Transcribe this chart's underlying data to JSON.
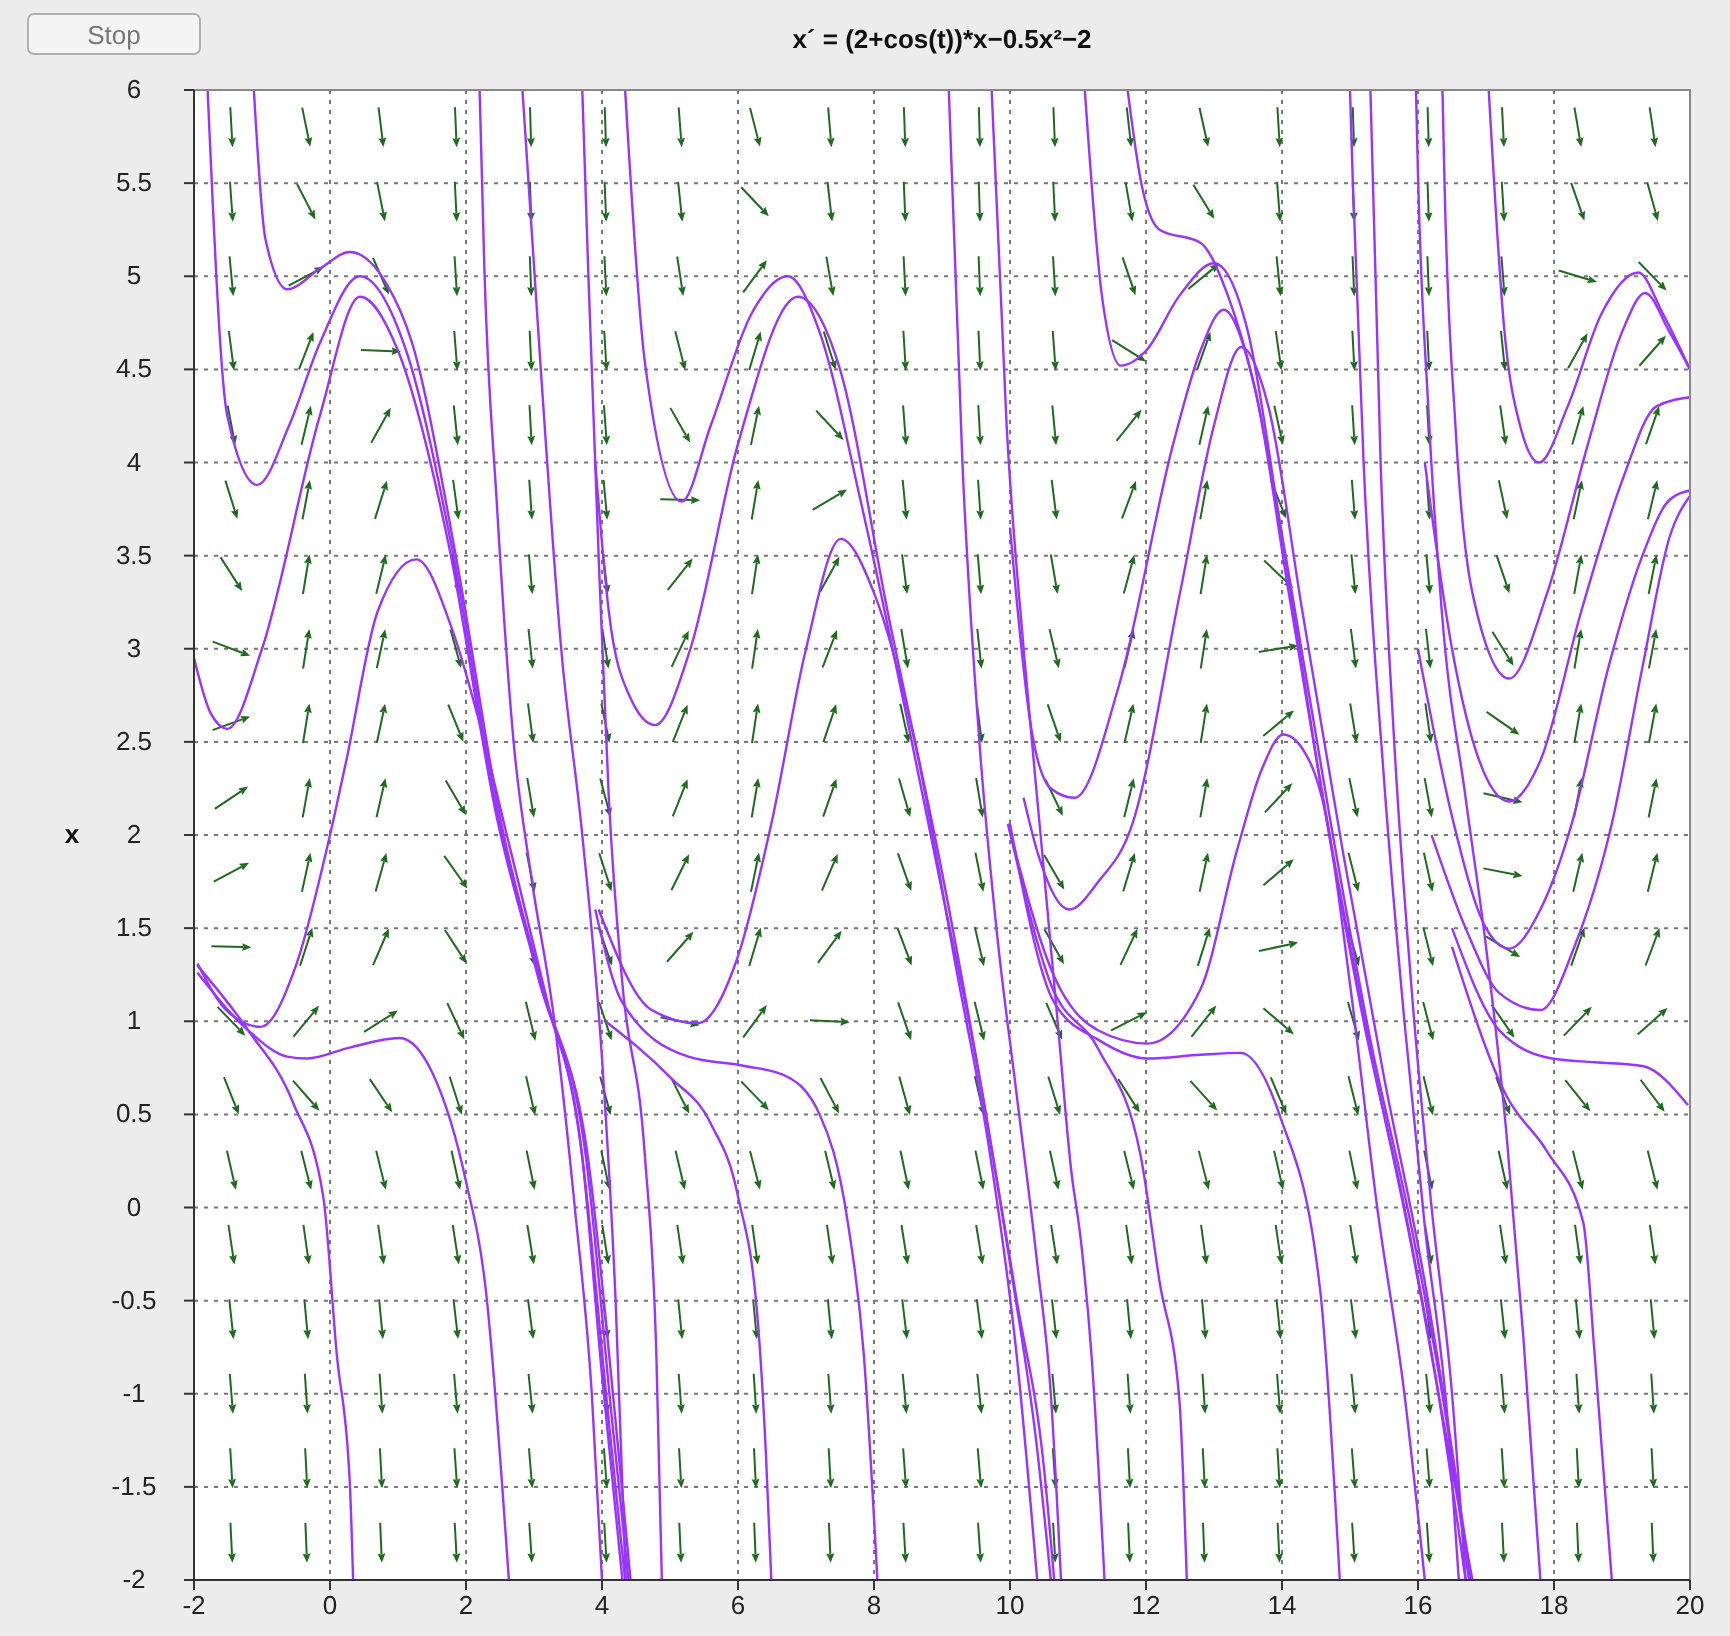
{
  "chart_data": {
    "type": "line",
    "title": "x´ = (2+cos(t))*x−0.5x²−2",
    "ylabel": "x",
    "annotations": [
      "Stop"
    ],
    "xlim": [
      -2,
      20
    ],
    "xticks": [
      -2,
      0,
      2,
      4,
      6,
      8,
      10,
      12,
      14,
      16,
      18,
      20
    ],
    "ylim": [
      -2,
      6
    ],
    "yticks": [
      -2,
      -1.5,
      -1,
      -0.5,
      0,
      0.5,
      1,
      1.5,
      2,
      2.5,
      3,
      3.5,
      4,
      4.5,
      5,
      5.5,
      6
    ],
    "grid": true,
    "series": [
      {
        "color": "#9933ff",
        "x": [
          -1.8,
          -1.51,
          -1.07,
          -0.6,
          -0.15,
          0.44,
          1.12,
          1.8,
          2.49,
          3.1,
          3.76,
          4.15,
          4.39
        ],
        "values": [
          6,
          4.25,
          3.88,
          4.2,
          4.64,
          5.0,
          4.6,
          3.53,
          2.06,
          1.2,
          0.28,
          -1.15,
          -2
        ]
      },
      {
        "color": "#9933ff",
        "x": [
          -1.12,
          -0.95,
          -0.63,
          -0.15,
          0.29,
          0.83,
          1.2,
          1.85,
          2.52,
          3.15,
          3.8,
          4.2,
          4.42
        ],
        "values": [
          6,
          5.2,
          4.93,
          5.04,
          5.13,
          4.96,
          4.65,
          3.5,
          2.06,
          1.15,
          0.25,
          -1.15,
          -2
        ]
      },
      {
        "color": "#9933ff",
        "x": [
          -2,
          -1.75,
          -1.51,
          -1.0,
          -0.15,
          0.44,
          1.0,
          1.75,
          2.45,
          3.05,
          3.7,
          4.1,
          4.34
        ],
        "values": [
          2.95,
          2.65,
          2.57,
          3.0,
          4.25,
          4.89,
          4.6,
          3.55,
          2.1,
          1.25,
          0.3,
          -1.15,
          -2
        ]
      },
      {
        "color": "#9933ff",
        "x": [
          -1.95,
          -1.5,
          -1.02,
          -0.5,
          0,
          0.24,
          0.7,
          1.27,
          1.8,
          2.2,
          2.6,
          3.2,
          3.7,
          4.0,
          4.3
        ],
        "values": [
          1.31,
          1.05,
          0.97,
          1.3,
          2.0,
          2.4,
          3.2,
          3.48,
          3.1,
          2.6,
          2.0,
          1.1,
          0.3,
          -0.9,
          -2
        ]
      },
      {
        "color": "#9933ff",
        "x": [
          -1.95,
          -1.2,
          -0.63,
          -0.34,
          0.3,
          1.02,
          1.51,
          2.0,
          2.29,
          2.63
        ],
        "values": [
          1.26,
          0.95,
          0.81,
          0.8,
          0.86,
          0.91,
          0.72,
          0.14,
          -0.44,
          -2
        ]
      },
      {
        "color": "#9933ff",
        "x": [
          -1.95,
          -1.2,
          -0.54,
          -0.1,
          0.1,
          0.29,
          0.34
        ],
        "values": [
          1.3,
          0.95,
          0.56,
          0.06,
          -0.79,
          -1.47,
          -2
        ]
      },
      {
        "color": "#9933ff",
        "x": [
          2.83,
          3.1,
          3.4,
          3.71,
          4.0,
          4.2,
          4.35
        ],
        "values": [
          6,
          4.5,
          3.0,
          2.0,
          0.8,
          -0.5,
          -2
        ]
      },
      {
        "color": "#9933ff",
        "x": [
          2.2,
          2.27,
          2.45,
          2.7,
          2.95,
          3.3,
          3.6,
          3.85,
          4.0
        ],
        "values": [
          6,
          5.04,
          3.8,
          2.5,
          1.8,
          1.0,
          0,
          -1,
          -2
        ]
      },
      {
        "color": "#9933ff",
        "x": [
          3.71,
          3.8,
          3.95,
          4.1,
          4.3,
          4.63,
          4.8,
          4.88
        ],
        "values": [
          6,
          5.0,
          3.5,
          2.2,
          1.2,
          0.28,
          -0.8,
          -2
        ]
      },
      {
        "color": "#9933ff",
        "x": [
          4.34,
          4.63,
          5.17,
          5.6,
          6.2,
          6.73,
          7.2,
          7.8,
          8.5,
          9.0,
          9.5,
          10.0,
          10.4,
          10.6
        ],
        "values": [
          6,
          4.54,
          3.79,
          4.2,
          4.8,
          5.0,
          4.7,
          3.8,
          2.6,
          1.7,
          0.8,
          -0.3,
          -1.3,
          -2
        ]
      },
      {
        "color": "#9933ff",
        "x": [
          3.9,
          4.1,
          4.4,
          4.78,
          5.3,
          6.0,
          6.88,
          7.5,
          8.2,
          9.0,
          9.6,
          10.1,
          10.5,
          10.65
        ],
        "values": [
          4.0,
          3.2,
          2.75,
          2.59,
          3.0,
          4.1,
          4.89,
          4.5,
          3.2,
          1.8,
          0.6,
          -0.5,
          -1.4,
          -2
        ]
      },
      {
        "color": "#9933ff",
        "x": [
          3.95,
          4.73,
          5.41,
          6.0,
          6.49,
          7.0,
          7.51,
          8.0,
          8.6,
          9.2,
          9.7,
          10.1,
          10.4
        ],
        "values": [
          1.6,
          1.06,
          0.99,
          1.35,
          2.06,
          3.0,
          3.59,
          3.3,
          2.5,
          1.3,
          0.3,
          -0.8,
          -2
        ]
      },
      {
        "color": "#9933ff",
        "x": [
          3.9,
          4.3,
          5.27,
          6.1,
          6.68,
          7.2,
          7.61,
          7.85,
          8.05
        ],
        "values": [
          1.6,
          1.1,
          0.81,
          0.76,
          0.71,
          0.5,
          -0.07,
          -0.79,
          -2
        ]
      },
      {
        "color": "#9933ff",
        "x": [
          4.05,
          5.0,
          5.6,
          6.0,
          6.3,
          6.41,
          6.49
        ],
        "values": [
          1.0,
          0.7,
          0.45,
          0.06,
          -0.65,
          -1.32,
          -2
        ]
      },
      {
        "color": "#9933ff",
        "x": [
          9.1,
          9.3,
          9.55,
          9.8,
          10.1,
          10.4,
          10.6,
          10.75
        ],
        "values": [
          6,
          4,
          2.5,
          1.5,
          0.6,
          -0.3,
          -1,
          -2
        ]
      },
      {
        "color": "#9933ff",
        "x": [
          9.73,
          9.95,
          10.2,
          10.45,
          10.7,
          10.9,
          11.04,
          11.2,
          11.39
        ],
        "values": [
          6,
          4.2,
          3.0,
          2.0,
          1.0,
          0.2,
          -0.17,
          -0.8,
          -2
        ]
      },
      {
        "color": "#9933ff",
        "x": [
          9.97,
          10.6,
          11.3,
          11.92,
          12.2,
          12.49,
          12.6
        ],
        "values": [
          2.06,
          1.2,
          0.85,
          0.28,
          -0.4,
          -1.03,
          -2
        ]
      },
      {
        "color": "#9933ff",
        "x": [
          11.1,
          11.35,
          11.63,
          12.0,
          12.5,
          13.0,
          13.5,
          14.0,
          14.6,
          15.2,
          15.8,
          16.3,
          16.7
        ],
        "values": [
          6,
          4.9,
          4.52,
          4.6,
          4.9,
          5.07,
          4.7,
          3.6,
          2.2,
          1.0,
          0,
          -1,
          -2
        ]
      },
      {
        "color": "#9933ff",
        "x": [
          11.73,
          11.92,
          12.2,
          12.8,
          13.2,
          13.6,
          14.1,
          14.7,
          15.3,
          15.9,
          16.4,
          16.75
        ],
        "values": [
          6,
          5.52,
          5.25,
          5.18,
          4.9,
          4.4,
          3.4,
          2.1,
          0.9,
          -0.1,
          -1.1,
          -2
        ]
      },
      {
        "color": "#9933ff",
        "x": [
          10.0,
          10.3,
          10.6,
          10.95,
          11.6,
          12.4,
          12.8,
          13.14,
          13.6,
          14.1,
          14.7,
          15.3,
          15.9,
          16.4,
          16.8
        ],
        "values": [
          3.65,
          2.6,
          2.25,
          2.2,
          2.8,
          4.1,
          4.6,
          4.82,
          4.4,
          3.3,
          2.0,
          0.85,
          -0.2,
          -1.2,
          -2
        ]
      },
      {
        "color": "#9933ff",
        "x": [
          10.2,
          10.41,
          10.87,
          11.3,
          11.8,
          12.5,
          13.0,
          13.4,
          13.8,
          14.3,
          14.9,
          15.5,
          16.1,
          16.5,
          16.78
        ],
        "values": [
          2.2,
          1.9,
          1.6,
          1.75,
          2.06,
          3.3,
          4.2,
          4.62,
          4.3,
          3.2,
          1.9,
          0.7,
          -0.4,
          -1.3,
          -2
        ]
      },
      {
        "color": "#9933ff",
        "x": [
          9.97,
          10.65,
          11.3,
          12.02,
          12.8,
          13.34,
          13.7,
          14.02,
          14.4,
          14.65,
          15.0,
          15.4,
          15.8,
          16.1
        ],
        "values": [
          2.06,
          1.24,
          0.95,
          0.88,
          1.17,
          1.92,
          2.35,
          2.54,
          2.4,
          2.1,
          1.2,
          0,
          -1,
          -2
        ]
      },
      {
        "color": "#9933ff",
        "x": [
          10.0,
          10.65,
          11.3,
          12.02,
          12.8,
          13.39,
          13.97,
          14.56,
          14.85
        ],
        "values": [
          2.06,
          1.1,
          0.9,
          0.8,
          0.82,
          0.83,
          0.49,
          -0.44,
          -2
        ]
      },
      {
        "color": "#9933ff",
        "x": [
          15.0,
          15.04,
          15.2,
          15.5,
          15.8,
          16.1,
          16.45,
          16.6
        ],
        "values": [
          6,
          5.52,
          4,
          2.3,
          1.0,
          -0.1,
          -1.2,
          -2
        ]
      },
      {
        "color": "#9933ff",
        "x": [
          15.3,
          15.45,
          15.65,
          15.9,
          16.2,
          16.5,
          16.7
        ],
        "values": [
          6,
          4,
          2.5,
          1.2,
          0,
          -1,
          -2
        ]
      },
      {
        "color": "#9933ff",
        "x": [
          15.97,
          16.0,
          16.15,
          16.35,
          16.7,
          17.0,
          17.3,
          17.55,
          17.8
        ],
        "values": [
          6,
          5.54,
          4.3,
          3.2,
          2.2,
          1.4,
          0.4,
          -0.7,
          -2
        ]
      },
      {
        "color": "#9933ff",
        "x": [
          16.36,
          16.39,
          16.55,
          16.8,
          17.34,
          17.9,
          18.5,
          19.0,
          19.34,
          19.7,
          20
        ],
        "values": [
          6,
          5.5,
          4.2,
          3.3,
          2.84,
          3.3,
          4.1,
          4.7,
          4.91,
          4.7,
          4.5
        ]
      },
      {
        "color": "#9933ff",
        "x": [
          17.04,
          17.27,
          17.5,
          17.78,
          18.2,
          18.7,
          19.24,
          19.6,
          20
        ],
        "values": [
          6,
          4.71,
          4.2,
          4.0,
          4.3,
          4.8,
          5.02,
          4.8,
          4.5
        ]
      },
      {
        "color": "#9933ff",
        "x": [
          16.1,
          16.5,
          16.9,
          17.34,
          17.8,
          18.4,
          19.0,
          19.5,
          20
        ],
        "values": [
          4.0,
          3.0,
          2.4,
          2.18,
          2.4,
          3.2,
          3.9,
          4.3,
          4.35
        ]
      },
      {
        "color": "#9933ff",
        "x": [
          16.0,
          16.5,
          17.0,
          17.34,
          17.8,
          18.26,
          18.8,
          19.3,
          19.7,
          20
        ],
        "values": [
          3.0,
          2.1,
          1.5,
          1.39,
          1.6,
          2.06,
          2.9,
          3.5,
          3.8,
          3.85
        ]
      },
      {
        "color": "#9933ff",
        "x": [
          16.2,
          16.7,
          17.2,
          17.8,
          18.3,
          18.85,
          19.3,
          19.7,
          20
        ],
        "values": [
          2.0,
          1.5,
          1.15,
          1.06,
          1.4,
          2.06,
          2.9,
          3.6,
          3.82
        ]
      },
      {
        "color": "#9933ff",
        "x": [
          16.5,
          17.2,
          17.97,
          18.6,
          19.3,
          19.97
        ],
        "values": [
          1.5,
          0.95,
          0.8,
          0.78,
          0.76,
          0.55
        ]
      },
      {
        "color": "#9933ff",
        "x": [
          16.5,
          17.3,
          17.9,
          18.43,
          18.6,
          18.85
        ],
        "values": [
          1.4,
          0.6,
          0.3,
          -0.08,
          -0.8,
          -2
        ]
      }
    ]
  }
}
